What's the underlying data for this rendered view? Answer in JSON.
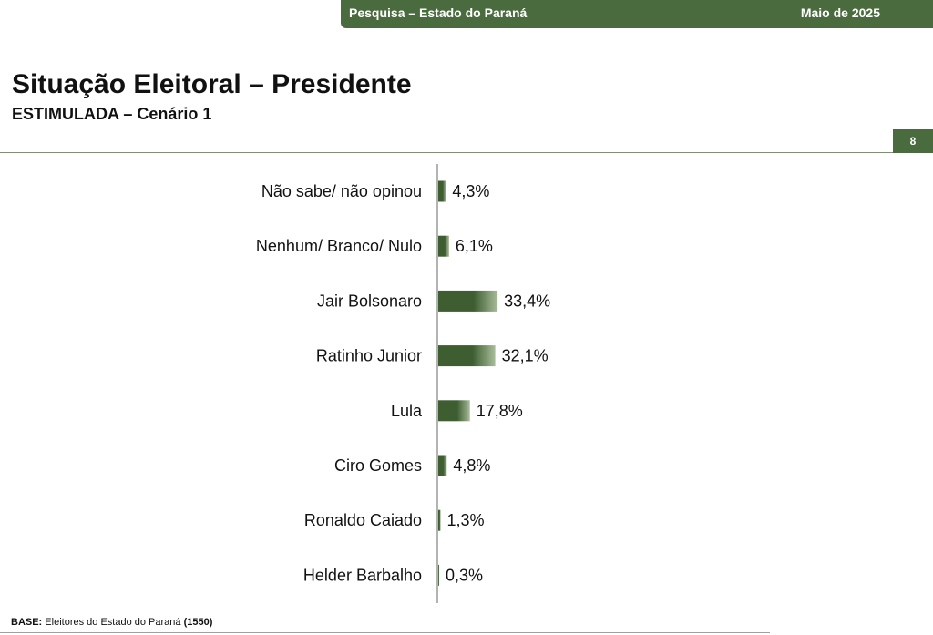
{
  "header": {
    "survey_label": "Pesquisa – Estado do Paraná",
    "date": "Maio de 2025"
  },
  "title": "Situação Eleitoral – Presidente",
  "subtitle": "ESTIMULADA – Cenário 1",
  "page_number": "8",
  "colors": {
    "brand_green": "#4a6b3e",
    "bar_dark": "#3e5e32",
    "bar_light": "#a9bd9a",
    "axis": "#9a9a9a"
  },
  "chart_data": {
    "type": "bar",
    "orientation": "horizontal",
    "categories": [
      "Não sabe/ não opinou",
      "Nenhum/ Branco/ Nulo",
      "Jair Bolsonaro",
      "Ratinho Junior",
      "Lula",
      "Ciro Gomes",
      "Ronaldo Caiado",
      "Helder Barbalho"
    ],
    "values": [
      4.3,
      6.1,
      33.4,
      32.1,
      17.8,
      4.8,
      1.3,
      0.3
    ],
    "value_labels": [
      "4,3%",
      "6,1%",
      "33,4%",
      "32,1%",
      "17,8%",
      "4,8%",
      "1,3%",
      "0,3%"
    ],
    "unit": "%",
    "xlim": [
      0,
      100
    ],
    "grid": false,
    "legend": "none"
  },
  "footer": {
    "base_label": "BASE:",
    "base_text": "Eleitores do Estado do Paraná",
    "base_count": "(1550)"
  }
}
